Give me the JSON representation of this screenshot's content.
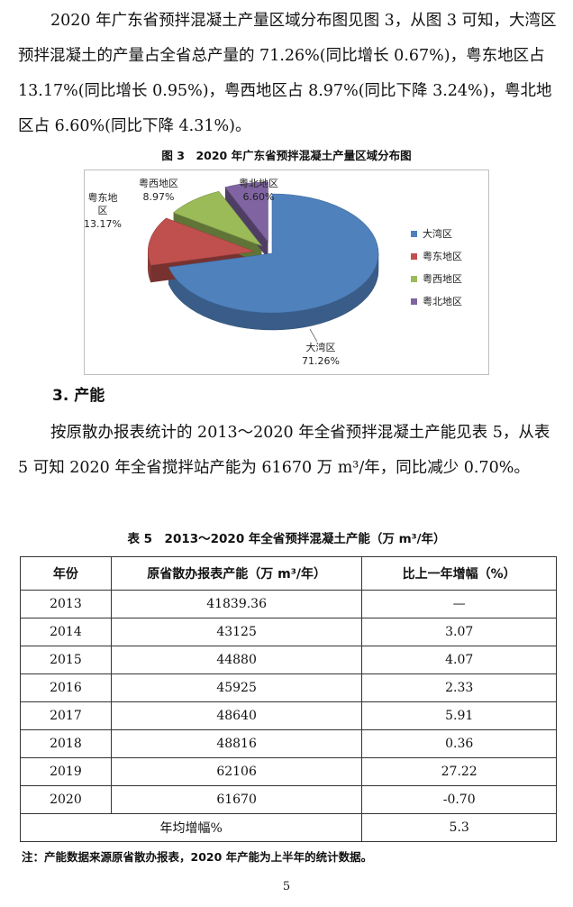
{
  "paragraph1": "2020 年广东省预拌混凝土产量区域分布图见图 3，从图 3 可知，大湾区预拌混凝土的产量占全省总产量的 71.26%(同比增长 0.67%)，粤东地区占 13.17%(同比增长 0.95%)，粤西地区占 8.97%(同比下降 3.24%)，粤北地区占 6.60%(同比下降 4.31%)。",
  "figure": {
    "caption": "图 3　2020 年广东省预拌混凝土产量区域分布图"
  },
  "chart_data": {
    "type": "pie",
    "title": "图 3　2020 年广东省预拌混凝土产量区域分布图",
    "categories": [
      "大湾区",
      "粤东地区",
      "粤西地区",
      "粤北地区"
    ],
    "values": [
      71.26,
      13.17,
      8.97,
      6.6
    ],
    "value_labels": [
      "71.26%",
      "13.17%",
      "8.97%",
      "6.60%"
    ],
    "pie_labels": [
      "大湾区",
      "粤东地\n区",
      "粤西地区",
      "粤北地区"
    ],
    "colors": [
      "#4f81bd",
      "#c0504d",
      "#9bbb59",
      "#8064a2"
    ],
    "legend_position": "right",
    "style": "3d-exploded"
  },
  "section_heading": "3. 产能",
  "paragraph2": "按原散办报表统计的 2013～2020 年全省预拌混凝土产能见表 5，从表 5 可知 2020 年全省搅拌站产能为 61670 万 m³/年，同比减少 0.70%。",
  "table": {
    "caption": "表 5　2013～2020 年全省预拌混凝土产能（万 m³/年）",
    "headers": [
      "年份",
      "原省散办报表产能（万 m³/年）",
      "比上一年增幅（%）"
    ],
    "rows": [
      [
        "2013",
        "41839.36",
        "—"
      ],
      [
        "2014",
        "43125",
        "3.07"
      ],
      [
        "2015",
        "44880",
        "4.07"
      ],
      [
        "2016",
        "45925",
        "2.33"
      ],
      [
        "2017",
        "48640",
        "5.91"
      ],
      [
        "2018",
        "48816",
        "0.36"
      ],
      [
        "2019",
        "62106",
        "27.22"
      ],
      [
        "2020",
        "61670",
        "-0.70"
      ]
    ],
    "footer_label": "年均增幅%",
    "footer_value": "5.3"
  },
  "note": "注：产能数据来源原省散办报表，2020 年产能为上半年的统计数据。",
  "page_number": "5"
}
